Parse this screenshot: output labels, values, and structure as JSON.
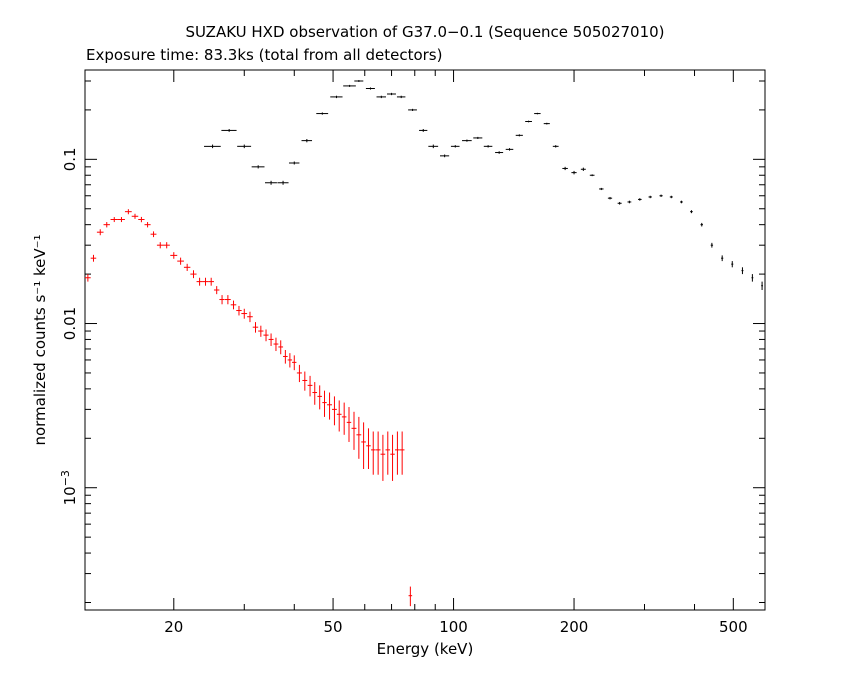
{
  "chart_data": {
    "type": "scatter",
    "title": "SUZAKU HXD observation of G37.0−0.1 (Sequence 505027010)",
    "subtitle": "Exposure time: 83.3ks (total from all detectors)",
    "xlabel": "Energy (keV)",
    "ylabel": "normalized counts s⁻¹ keV⁻¹",
    "xscale": "log",
    "yscale": "log",
    "xlim": [
      12,
      600
    ],
    "ylim": [
      0.00018,
      0.35
    ],
    "grid": false,
    "legend": "none",
    "x_ticks": [
      {
        "value": 20,
        "label": "20"
      },
      {
        "value": 50,
        "label": "50"
      },
      {
        "value": 100,
        "label": "100"
      },
      {
        "value": 200,
        "label": "200"
      },
      {
        "value": 500,
        "label": "500"
      }
    ],
    "y_ticks": [
      {
        "value": 0.1,
        "label": "0.1"
      },
      {
        "value": 0.01,
        "label": "0.01"
      },
      {
        "value": 0.001,
        "label": "10",
        "sup": "−3"
      }
    ],
    "series": [
      {
        "color": "#000000",
        "x": [
          25,
          27.5,
          30,
          32.5,
          35,
          37.5,
          40,
          43,
          47,
          51,
          55,
          58,
          62,
          66,
          70,
          74,
          79,
          84,
          89,
          95,
          101,
          108,
          115,
          122,
          130,
          138,
          146,
          154,
          162,
          171,
          180,
          190,
          200,
          211,
          222,
          234,
          246,
          260,
          275,
          292,
          310,
          330,
          350,
          371,
          393,
          417,
          442,
          469,
          497,
          527,
          558,
          590
        ],
        "y": [
          0.12,
          0.15,
          0.12,
          0.09,
          0.072,
          0.072,
          0.095,
          0.13,
          0.19,
          0.24,
          0.28,
          0.3,
          0.27,
          0.24,
          0.25,
          0.24,
          0.2,
          0.15,
          0.12,
          0.105,
          0.12,
          0.13,
          0.135,
          0.12,
          0.11,
          0.115,
          0.14,
          0.17,
          0.19,
          0.165,
          0.12,
          0.088,
          0.083,
          0.087,
          0.08,
          0.066,
          0.058,
          0.054,
          0.055,
          0.057,
          0.059,
          0.06,
          0.059,
          0.055,
          0.048,
          0.04,
          0.03,
          0.025,
          0.023,
          0.021,
          0.019,
          0.017
        ],
        "xerr": [
          1.2,
          1.2,
          1.2,
          1.2,
          1.2,
          1.2,
          1.2,
          1.3,
          1.6,
          1.8,
          2,
          1.5,
          1.6,
          1.8,
          1.8,
          1.8,
          2,
          2,
          2.5,
          2.5,
          2.5,
          3,
          3,
          3,
          3,
          3,
          3,
          3,
          3,
          3,
          3,
          3,
          3,
          3,
          3,
          3,
          3,
          3,
          3,
          3,
          3,
          3,
          3,
          3,
          3,
          3,
          3,
          3,
          3,
          3,
          3,
          3
        ],
        "yerr": [
          0.003,
          0.003,
          0.003,
          0.002,
          0.002,
          0.002,
          0.002,
          0.003,
          0.003,
          0.004,
          0.004,
          0.004,
          0.004,
          0.004,
          0.004,
          0.004,
          0.003,
          0.003,
          0.003,
          0.002,
          0.002,
          0.002,
          0.002,
          0.002,
          0.002,
          0.002,
          0.002,
          0.002,
          0.002,
          0.002,
          0.002,
          0.002,
          0.002,
          0.002,
          0.001,
          0.001,
          0.001,
          0.001,
          0.001,
          0.001,
          0.001,
          0.001,
          0.001,
          0.001,
          0.001,
          0.001,
          0.001,
          0.001,
          0.001,
          0.001,
          0.001,
          0.001
        ]
      },
      {
        "color": "#ff0000",
        "x": [
          12.2,
          12.6,
          13.1,
          13.6,
          14.2,
          14.8,
          15.4,
          16,
          16.6,
          17.2,
          17.8,
          18.5,
          19.2,
          20,
          20.8,
          21.6,
          22.4,
          23.2,
          24,
          24.8,
          25.6,
          26.4,
          27.3,
          28.2,
          29.1,
          30,
          31,
          32,
          33,
          34,
          35,
          36,
          37,
          38,
          39,
          40,
          41.2,
          42.5,
          43.8,
          45,
          46.3,
          47.6,
          49,
          50.4,
          51.8,
          53.3,
          54.8,
          56.4,
          58,
          59.6,
          61.3,
          63,
          64.8,
          66.6,
          68.5,
          70.4,
          72.4,
          74.4,
          78
        ],
        "y": [
          0.019,
          0.025,
          0.036,
          0.04,
          0.043,
          0.043,
          0.048,
          0.045,
          0.043,
          0.04,
          0.035,
          0.03,
          0.03,
          0.026,
          0.024,
          0.022,
          0.02,
          0.018,
          0.018,
          0.018,
          0.016,
          0.014,
          0.014,
          0.013,
          0.012,
          0.0115,
          0.011,
          0.0095,
          0.009,
          0.0085,
          0.008,
          0.0075,
          0.0072,
          0.0063,
          0.006,
          0.0058,
          0.005,
          0.0045,
          0.0042,
          0.0038,
          0.0036,
          0.0033,
          0.0032,
          0.003,
          0.0028,
          0.0027,
          0.0025,
          0.0023,
          0.0021,
          0.0019,
          0.0018,
          0.0017,
          0.0017,
          0.0016,
          0.0017,
          0.0016,
          0.0017,
          0.0017,
          0.00022
        ],
        "xerr": [
          0.2,
          0.2,
          0.25,
          0.25,
          0.3,
          0.3,
          0.3,
          0.3,
          0.3,
          0.3,
          0.3,
          0.35,
          0.35,
          0.4,
          0.4,
          0.4,
          0.4,
          0.4,
          0.4,
          0.4,
          0.4,
          0.4,
          0.45,
          0.45,
          0.45,
          0.5,
          0.5,
          0.5,
          0.5,
          0.5,
          0.5,
          0.5,
          0.5,
          0.5,
          0.5,
          0.5,
          0.6,
          0.6,
          0.6,
          0.6,
          0.6,
          0.6,
          0.7,
          0.7,
          0.7,
          0.7,
          0.7,
          0.8,
          0.8,
          0.8,
          0.8,
          0.8,
          0.9,
          0.9,
          0.9,
          0.9,
          1,
          1,
          0.8
        ],
        "yerr": [
          0.001,
          0.0012,
          0.0015,
          0.0015,
          0.0015,
          0.0015,
          0.0017,
          0.0016,
          0.0016,
          0.0015,
          0.0014,
          0.0013,
          0.0013,
          0.0012,
          0.0012,
          0.0011,
          0.0011,
          0.001,
          0.001,
          0.001,
          0.0009,
          0.0009,
          0.0009,
          0.0008,
          0.0008,
          0.0008,
          0.0008,
          0.0007,
          0.0007,
          0.0007,
          0.0007,
          0.0007,
          0.0007,
          0.0006,
          0.0006,
          0.0006,
          0.0006,
          0.0006,
          0.0006,
          0.0006,
          0.0006,
          0.0006,
          0.0006,
          0.0006,
          0.0006,
          0.0006,
          0.0006,
          0.0006,
          0.0006,
          0.0006,
          0.0005,
          0.0005,
          0.0005,
          0.0005,
          0.0005,
          0.0005,
          0.0005,
          0.0005,
          3e-05
        ]
      }
    ]
  }
}
